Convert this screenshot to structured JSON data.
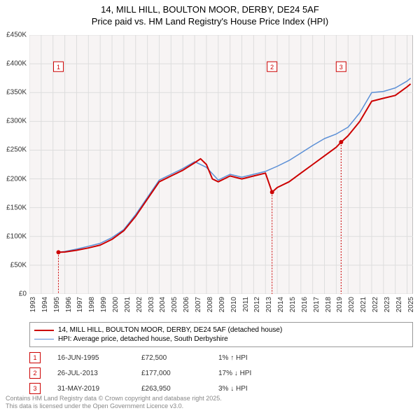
{
  "title": {
    "line1": "14, MILL HILL, BOULTON MOOR, DERBY, DE24 5AF",
    "line2": "Price paid vs. HM Land Registry's House Price Index (HPI)",
    "fontsize": 13,
    "color": "#000000"
  },
  "chart": {
    "type": "line",
    "background_color": "#f7f4f4",
    "grid_color": "#dddddd",
    "plot_border_color": "#888888",
    "x_range": [
      1993,
      2025.5
    ],
    "y_range": [
      0,
      450000
    ],
    "y_ticks": [
      0,
      50000,
      100000,
      150000,
      200000,
      250000,
      300000,
      350000,
      400000,
      450000
    ],
    "y_labels": [
      "£0",
      "£50K",
      "£100K",
      "£150K",
      "£200K",
      "£250K",
      "£300K",
      "£350K",
      "£400K",
      "£450K"
    ],
    "y_label_fontsize": 10,
    "x_ticks": [
      1993,
      1994,
      1995,
      1996,
      1997,
      1998,
      1999,
      2000,
      2001,
      2002,
      2003,
      2004,
      2005,
      2006,
      2007,
      2008,
      2009,
      2010,
      2011,
      2012,
      2013,
      2014,
      2015,
      2016,
      2017,
      2018,
      2019,
      2020,
      2021,
      2022,
      2023,
      2024,
      2025
    ],
    "x_label_fontsize": 10,
    "x_label_rotation": -90,
    "series": [
      {
        "name": "price_paid",
        "color": "#cc0000",
        "width": 2,
        "points": [
          [
            1995.46,
            72500
          ],
          [
            1996,
            73000
          ],
          [
            1997,
            76000
          ],
          [
            1998,
            80000
          ],
          [
            1999,
            85000
          ],
          [
            2000,
            95000
          ],
          [
            2001,
            110000
          ],
          [
            2002,
            135000
          ],
          [
            2003,
            165000
          ],
          [
            2004,
            195000
          ],
          [
            2005,
            205000
          ],
          [
            2006,
            215000
          ],
          [
            2007,
            228000
          ],
          [
            2007.5,
            235000
          ],
          [
            2008,
            225000
          ],
          [
            2008.5,
            200000
          ],
          [
            2009,
            195000
          ],
          [
            2010,
            205000
          ],
          [
            2011,
            200000
          ],
          [
            2012,
            205000
          ],
          [
            2013,
            210000
          ],
          [
            2013.56,
            177000
          ],
          [
            2014,
            185000
          ],
          [
            2015,
            195000
          ],
          [
            2016,
            210000
          ],
          [
            2017,
            225000
          ],
          [
            2018,
            240000
          ],
          [
            2019,
            255000
          ],
          [
            2019.41,
            263950
          ],
          [
            2019.42,
            263950
          ],
          [
            2020,
            275000
          ],
          [
            2021,
            300000
          ],
          [
            2022,
            335000
          ],
          [
            2023,
            340000
          ],
          [
            2024,
            345000
          ],
          [
            2025,
            360000
          ],
          [
            2025.3,
            365000
          ]
        ],
        "drops": [
          {
            "x": 2013.56,
            "from": 210000,
            "to": 177000
          },
          {
            "x": 2019.41,
            "from": 255000,
            "to": 263950
          }
        ]
      },
      {
        "name": "hpi",
        "color": "#5b8fd6",
        "width": 1.5,
        "points": [
          [
            1995.46,
            72500
          ],
          [
            1996,
            74000
          ],
          [
            1997,
            78000
          ],
          [
            1998,
            83000
          ],
          [
            1999,
            88000
          ],
          [
            2000,
            98000
          ],
          [
            2001,
            112000
          ],
          [
            2002,
            138000
          ],
          [
            2003,
            168000
          ],
          [
            2004,
            198000
          ],
          [
            2005,
            208000
          ],
          [
            2006,
            218000
          ],
          [
            2007,
            230000
          ],
          [
            2008,
            220000
          ],
          [
            2009,
            198000
          ],
          [
            2010,
            208000
          ],
          [
            2011,
            203000
          ],
          [
            2012,
            208000
          ],
          [
            2013,
            213000
          ],
          [
            2014,
            222000
          ],
          [
            2015,
            232000
          ],
          [
            2016,
            245000
          ],
          [
            2017,
            258000
          ],
          [
            2018,
            270000
          ],
          [
            2019,
            278000
          ],
          [
            2020,
            290000
          ],
          [
            2021,
            315000
          ],
          [
            2022,
            350000
          ],
          [
            2023,
            352000
          ],
          [
            2024,
            358000
          ],
          [
            2025,
            370000
          ],
          [
            2025.3,
            375000
          ]
        ]
      }
    ],
    "markers": [
      {
        "id": "1",
        "x": 1995.46,
        "y_box": 395000,
        "sale_y": 72500
      },
      {
        "id": "2",
        "x": 2013.56,
        "y_box": 395000,
        "sale_y": 177000
      },
      {
        "id": "3",
        "x": 2019.41,
        "y_box": 395000,
        "sale_y": 263950
      }
    ],
    "marker_box_color": "#cc0000",
    "marker_line_color": "#cc0000"
  },
  "legend": {
    "border_color": "#999999",
    "fontsize": 10,
    "items": [
      {
        "color": "#cc0000",
        "width": 2,
        "label": "14, MILL HILL, BOULTON MOOR, DERBY, DE24 5AF (detached house)"
      },
      {
        "color": "#5b8fd6",
        "width": 1.5,
        "label": "HPI: Average price, detached house, South Derbyshire"
      }
    ]
  },
  "sales": [
    {
      "id": "1",
      "date": "16-JUN-1995",
      "price": "£72,500",
      "delta_pct": "1%",
      "arrow": "↑",
      "delta_label": "HPI"
    },
    {
      "id": "2",
      "date": "26-JUL-2013",
      "price": "£177,000",
      "delta_pct": "17%",
      "arrow": "↓",
      "delta_label": "HPI"
    },
    {
      "id": "3",
      "date": "31-MAY-2019",
      "price": "£263,950",
      "delta_pct": "3%",
      "arrow": "↓",
      "delta_label": "HPI"
    }
  ],
  "footer": {
    "line1": "Contains HM Land Registry data © Crown copyright and database right 2025.",
    "line2": "This data is licensed under the Open Government Licence v3.0.",
    "fontsize": 9,
    "color": "#888888"
  }
}
